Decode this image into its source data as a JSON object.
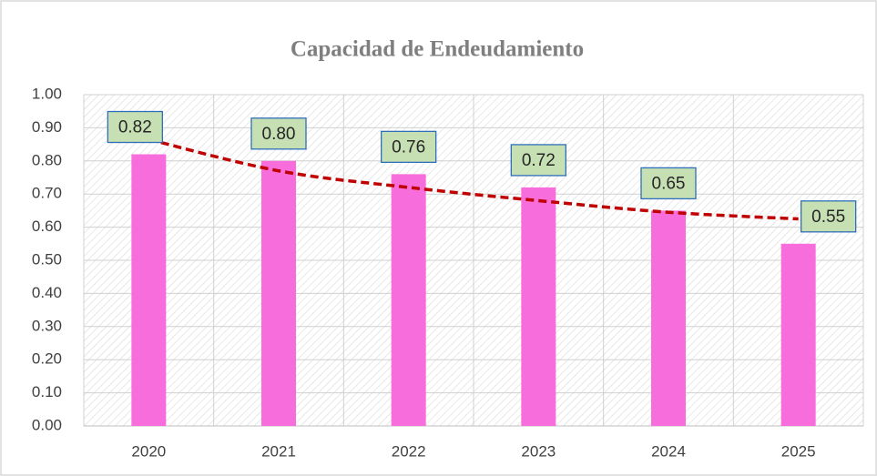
{
  "chart_data": {
    "type": "bar",
    "title": "Capacidad de Endeudamiento",
    "categories": [
      "2020",
      "2021",
      "2022",
      "2023",
      "2024",
      "2025"
    ],
    "values": [
      0.82,
      0.8,
      0.76,
      0.72,
      0.65,
      0.55
    ],
    "value_labels": [
      "0.82",
      "0.80",
      "0.76",
      "0.72",
      "0.65",
      "0.55"
    ],
    "color": "#f86ddc",
    "label_fill": "#c6e0b4",
    "label_border": "#2f6eba",
    "trendline": {
      "values": [
        0.865,
        0.77,
        0.72,
        0.68,
        0.645,
        0.625
      ],
      "color": "#c00000",
      "dashed": true
    },
    "ylim": [
      0,
      1
    ],
    "yticks": [
      {
        "value": 0,
        "label": "0.00"
      },
      {
        "value": 0.1,
        "label": "0.10"
      },
      {
        "value": 0.2,
        "label": "0.20"
      },
      {
        "value": 0.3,
        "label": "0.30"
      },
      {
        "value": 0.4,
        "label": "0.40"
      },
      {
        "value": 0.5,
        "label": "0.50"
      },
      {
        "value": 0.6,
        "label": "0.60"
      },
      {
        "value": 0.7,
        "label": "0.70"
      },
      {
        "value": 0.8,
        "label": "0.80"
      },
      {
        "value": 0.9,
        "label": "0.90"
      },
      {
        "value": 1,
        "label": "1.00"
      }
    ],
    "grid": true
  }
}
